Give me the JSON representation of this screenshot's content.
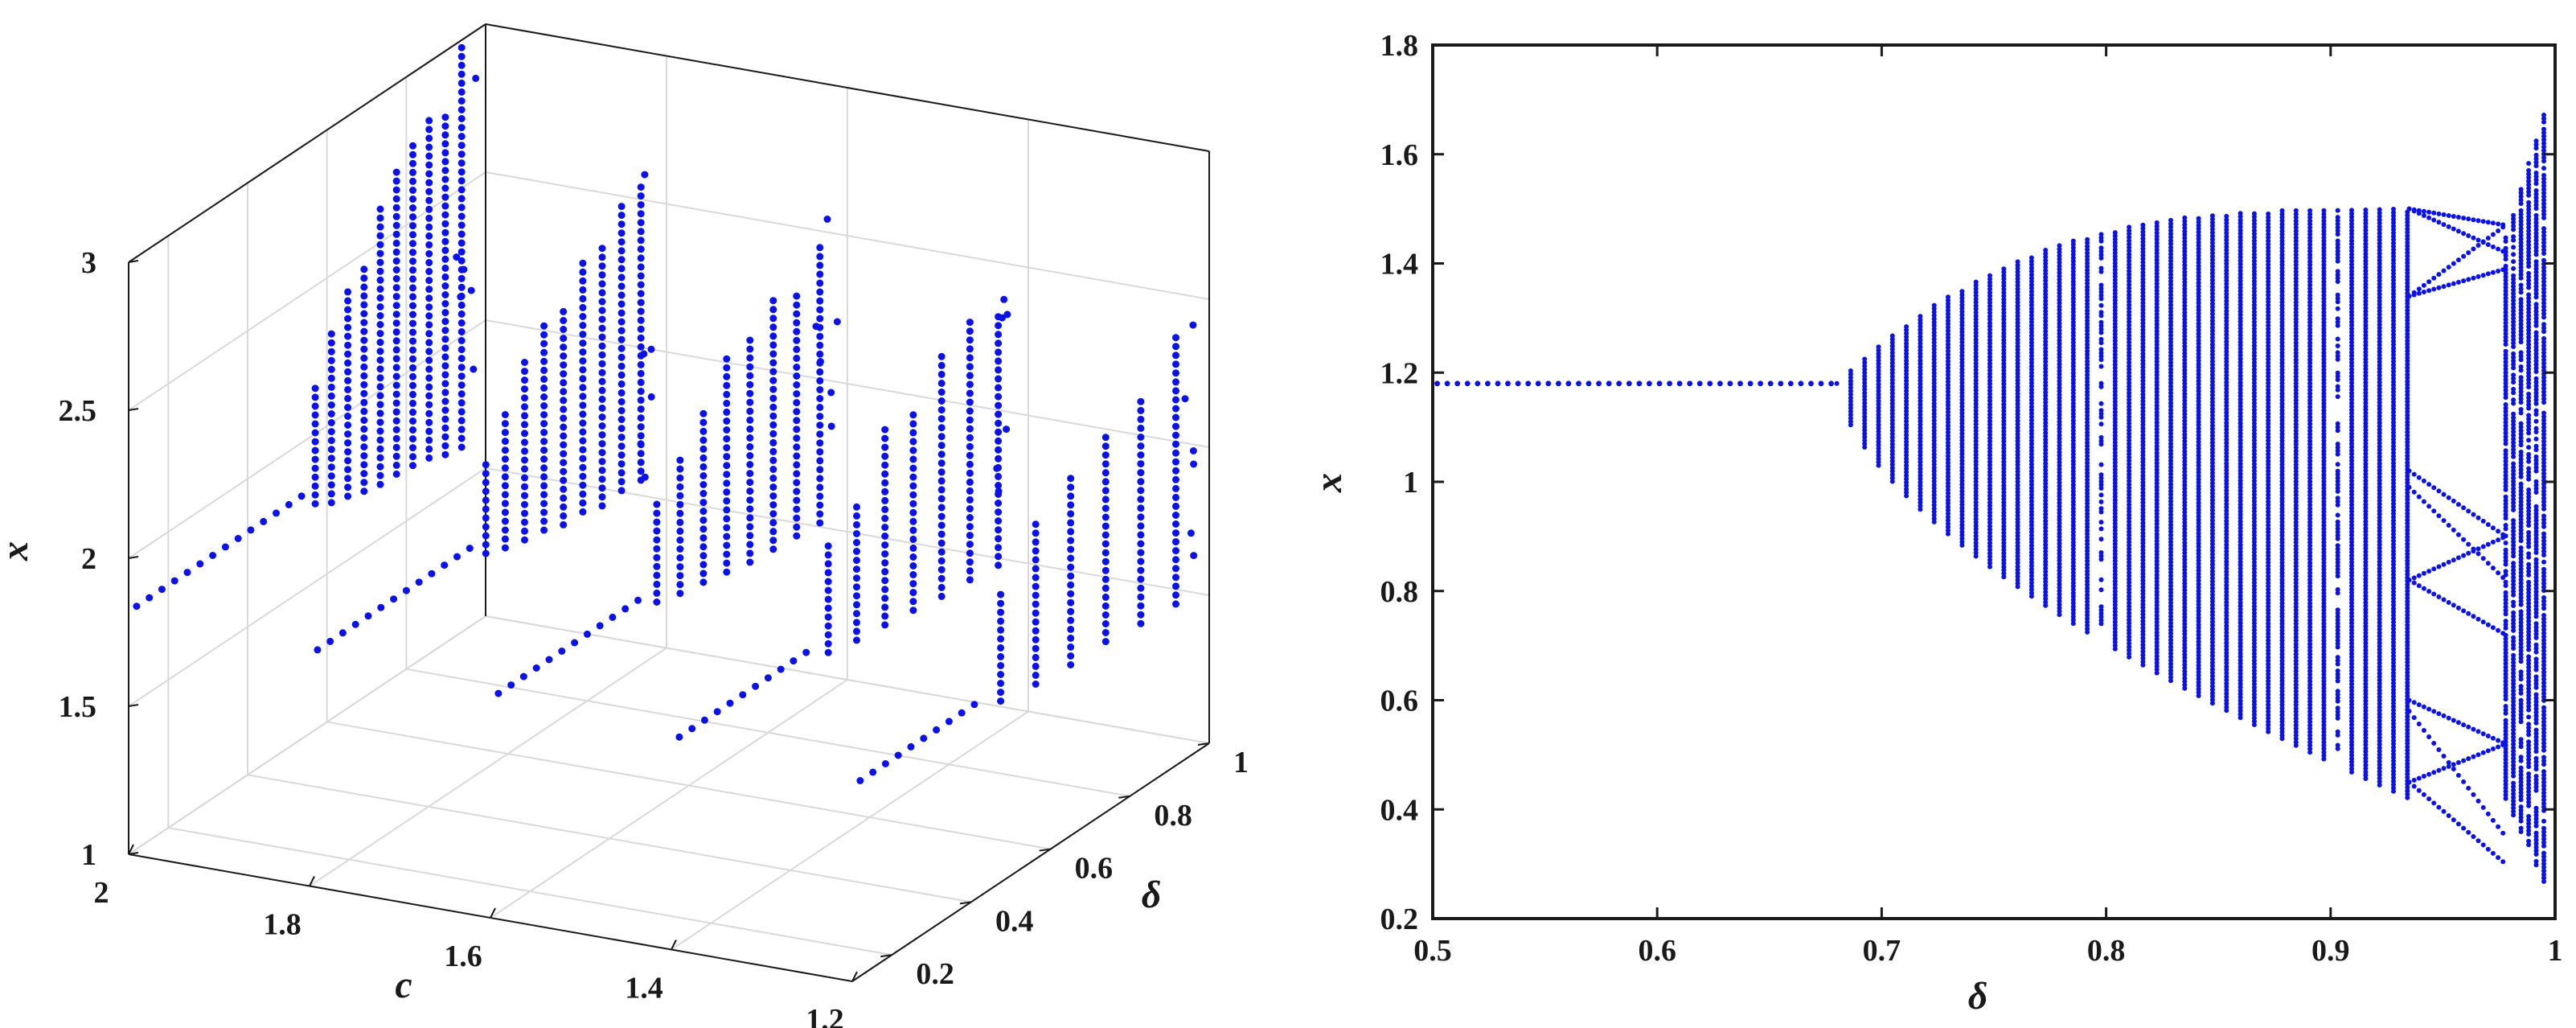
{
  "figure": {
    "color": "#0a12e8",
    "axis_color": "#1a1a1a",
    "grid_color": "#d9d9d9"
  },
  "chart_data": [
    {
      "type": "scatter",
      "title": "",
      "projection": "3d",
      "xlabel": "c",
      "ylabel": "δ",
      "zlabel": "x",
      "xlim": [
        1.2,
        2.0
      ],
      "ylim": [
        0.1,
        1.0
      ],
      "zlim": [
        1.0,
        3.0
      ],
      "x_ticks": [
        "2",
        "1.8",
        "1.6",
        "1.4",
        "1.2"
      ],
      "y_ticks": [
        "0.2",
        "0.4",
        "0.6",
        "0.8",
        "1"
      ],
      "z_ticks": [
        "1",
        "1.5",
        "2",
        "2.5",
        "3"
      ],
      "x_tick_values": [
        2.0,
        1.8,
        1.6,
        1.4,
        1.2
      ],
      "y_tick_values": [
        0.2,
        0.4,
        0.6,
        0.8,
        1.0
      ],
      "z_tick_values": [
        1.0,
        1.5,
        2.0,
        2.5,
        3.0
      ],
      "grid": true,
      "c_slices": [
        2.0,
        1.8,
        1.6,
        1.4,
        1.2
      ],
      "description_of_series": "bifurcation diagrams of x versus δ at several values of c"
    },
    {
      "type": "scatter",
      "title": "",
      "xlabel": "δ",
      "ylabel": "x",
      "xlim": [
        0.5,
        1.0
      ],
      "ylim": [
        0.2,
        1.8
      ],
      "x_ticks": [
        "0.5",
        "0.6",
        "0.7",
        "0.8",
        "0.9",
        "1"
      ],
      "y_ticks": [
        "0.2",
        "0.4",
        "0.6",
        "0.8",
        "1",
        "1.2",
        "1.4",
        "1.6",
        "1.8"
      ],
      "x_tick_values": [
        0.5,
        0.6,
        0.7,
        0.8,
        0.9,
        1.0
      ],
      "y_tick_values": [
        0.2,
        0.4,
        0.6,
        0.8,
        1.0,
        1.2,
        1.4,
        1.6,
        1.8
      ],
      "grid": false,
      "fixed_point": 1.18,
      "bifurcation_onset": 0.68,
      "envelope_upper_max": 1.5,
      "envelope_lower_min": 0.42,
      "chaotic_band_edge": 0.935,
      "period_window": [
        0.935,
        0.978
      ],
      "final_band": [
        0.978,
        0.997
      ],
      "final_band_range": [
        0.25,
        1.7
      ]
    }
  ]
}
